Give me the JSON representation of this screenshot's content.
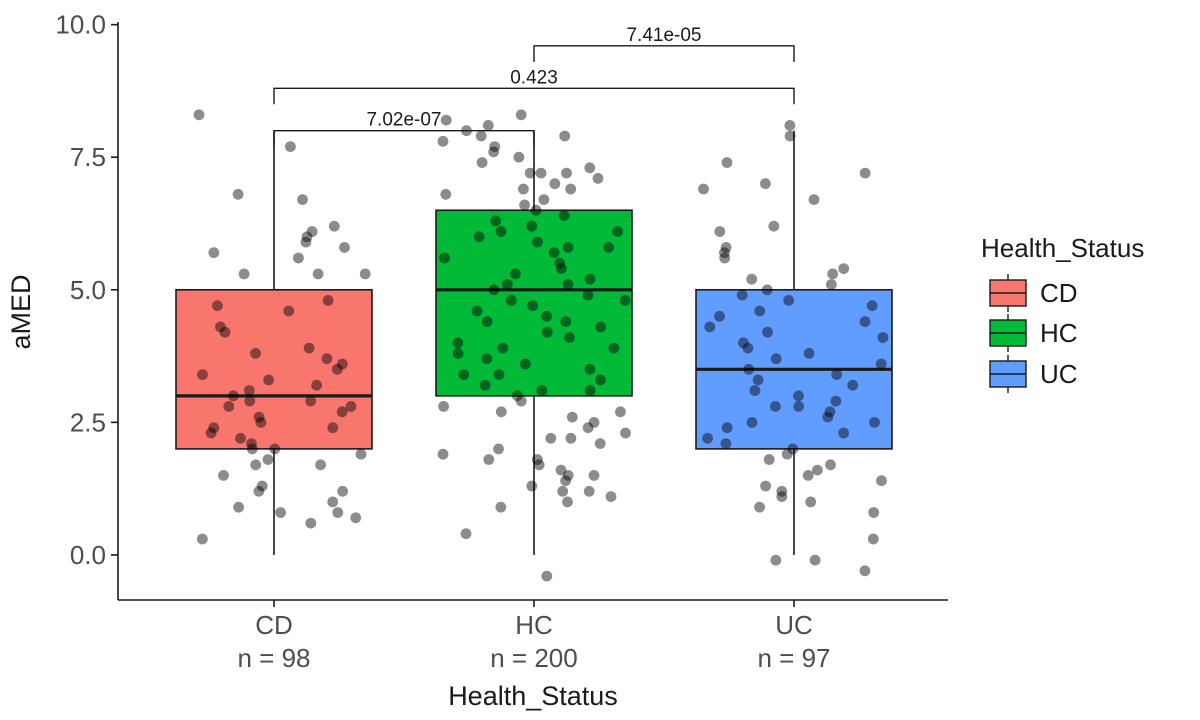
{
  "chart_data": {
    "type": "box",
    "xlabel": "Health_Status",
    "ylabel": "aMED",
    "ylim": [
      -0.85,
      10.05
    ],
    "y_ticks": [
      "0.0",
      "2.5",
      "5.0",
      "7.5",
      "10.0"
    ],
    "grid": false,
    "legend": {
      "title": "Health_Status",
      "position": "right"
    },
    "groups": [
      {
        "name": "CD",
        "n_label": "n = 98",
        "color": "#f8766d",
        "min": 0,
        "q1": 2,
        "median": 3,
        "q3": 5,
        "max": 8,
        "points": [
          6.7,
          6.8,
          5.6,
          5.3,
          6.0,
          5.9,
          5.7,
          5.8,
          6.1,
          6.2,
          5.3,
          5.3,
          4.8,
          4.7,
          4.6,
          4.2,
          4.3,
          3.7,
          3.6,
          3.5,
          3.4,
          3.3,
          3.2,
          3.1,
          3.0,
          2.9,
          2.8,
          2.7,
          2.6,
          2.5,
          2.4,
          2.4,
          2.3,
          2.2,
          2.1,
          2.0,
          1.9,
          1.8,
          1.7,
          1.5,
          1.3,
          1.2,
          1.0,
          0.9,
          0.8,
          0.8,
          0.6,
          0.3,
          7.7,
          8.3,
          3.9,
          3.8,
          2.9,
          2.8,
          2.0,
          1.7,
          1.2,
          0.7
        ]
      },
      {
        "name": "HC",
        "n_label": "n = 200",
        "color": "#00ba38",
        "min": 0,
        "q1": 3,
        "median": 5,
        "q3": 6.5,
        "max": 8,
        "points": [
          8.3,
          8.2,
          8.1,
          8.0,
          7.9,
          7.8,
          7.7,
          7.6,
          7.5,
          7.4,
          7.3,
          7.2,
          7.2,
          7.1,
          7.0,
          6.9,
          6.8,
          6.7,
          6.6,
          6.5,
          6.4,
          6.3,
          6.2,
          6.1,
          6.0,
          5.9,
          5.8,
          5.7,
          5.6,
          5.5,
          5.4,
          5.3,
          5.2,
          5.1,
          5.0,
          4.9,
          4.8,
          4.7,
          4.6,
          4.5,
          4.4,
          4.3,
          4.2,
          4.1,
          4.0,
          3.9,
          3.8,
          3.7,
          3.6,
          3.5,
          3.4,
          3.3,
          3.2,
          3.1,
          3.0,
          2.9,
          2.8,
          2.7,
          2.6,
          2.5,
          2.4,
          2.3,
          2.2,
          2.1,
          2.0,
          1.9,
          1.8,
          1.7,
          1.6,
          1.5,
          1.4,
          1.3,
          1.2,
          1.1,
          1.0,
          0.4,
          -0.4,
          7.9,
          7.2,
          6.9,
          6.1,
          5.8,
          5.1,
          4.8,
          4.4,
          3.9,
          3.4,
          3.1,
          2.7,
          2.2,
          1.8,
          1.5,
          1.2,
          0.9
        ]
      },
      {
        "name": "UC",
        "n_label": "n = 97",
        "color": "#619cff",
        "min": 0,
        "q1": 2,
        "median": 3.5,
        "q3": 5,
        "max": 8,
        "points": [
          8.1,
          7.9,
          7.4,
          7.2,
          7.0,
          6.9,
          6.7,
          6.2,
          6.1,
          5.8,
          5.7,
          5.6,
          5.4,
          5.3,
          5.1,
          5.0,
          4.9,
          4.8,
          4.7,
          4.6,
          4.5,
          4.4,
          4.2,
          4.1,
          4.0,
          3.9,
          3.8,
          3.6,
          3.5,
          3.4,
          3.3,
          3.2,
          3.1,
          3.0,
          2.9,
          2.8,
          2.7,
          2.6,
          2.5,
          2.4,
          2.3,
          2.2,
          2.1,
          2.0,
          1.9,
          1.8,
          1.7,
          1.6,
          1.5,
          1.3,
          1.2,
          1.1,
          1.0,
          0.9,
          0.8,
          0.3,
          -0.1,
          -0.1,
          -0.3,
          5.2,
          4.3,
          3.7,
          2.8,
          2.5,
          1.4
        ]
      }
    ],
    "comparisons": [
      {
        "from": "HC",
        "to": "UC",
        "label": "7.41e-05",
        "y": 9.6
      },
      {
        "from": "CD",
        "to": "UC",
        "label": "0.423",
        "y": 8.8
      },
      {
        "from": "CD",
        "to": "HC",
        "label": "7.02e-07",
        "y": 8.0
      }
    ]
  }
}
